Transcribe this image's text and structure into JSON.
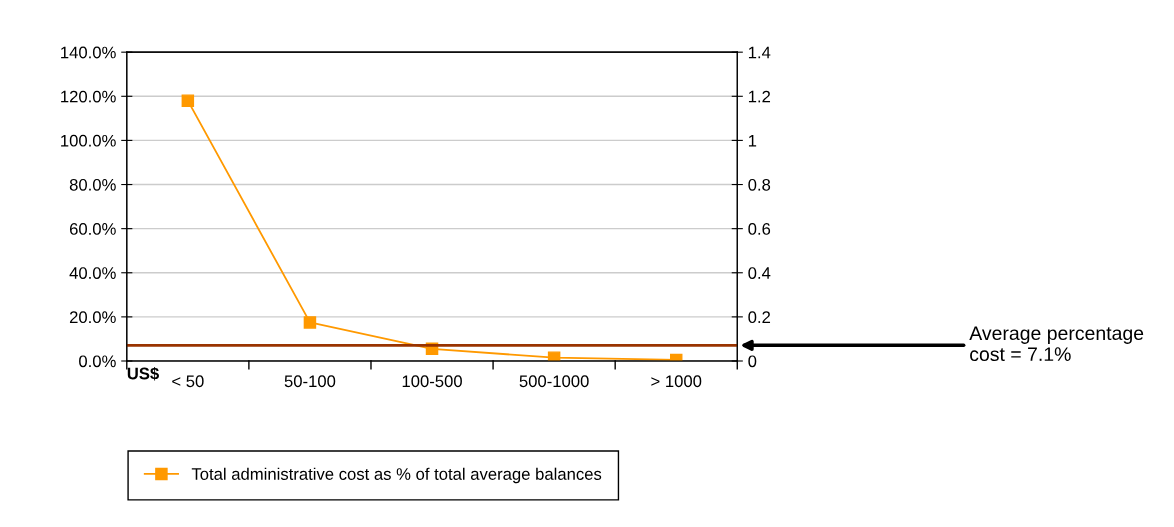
{
  "chart_data": {
    "type": "line",
    "xlabel": "US$",
    "categories": [
      "< 50",
      "50-100",
      "100-500",
      "500-1000",
      "> 1000"
    ],
    "series": [
      {
        "name": "Total administrative cost as % of total average balances",
        "color": "#ff9900",
        "values": [
          118,
          17.5,
          5.5,
          1.5,
          0.5
        ]
      }
    ],
    "ylim": [
      0,
      140
    ],
    "yticks": [
      {
        "value": 0,
        "label": "0.0%"
      },
      {
        "value": 20,
        "label": "20.0%"
      },
      {
        "value": 40,
        "label": "40.0%"
      },
      {
        "value": 60,
        "label": "60.0%"
      },
      {
        "value": 80,
        "label": "80.0%"
      },
      {
        "value": 100,
        "label": "100.0%"
      },
      {
        "value": 120,
        "label": "120.0%"
      },
      {
        "value": 140,
        "label": "140.0%"
      }
    ],
    "y2lim": [
      0,
      1.4
    ],
    "y2ticks": [
      0,
      0.2,
      0.4,
      0.6,
      0.8,
      1,
      1.2,
      1.4
    ],
    "ref_lines": [
      {
        "axis": "y",
        "value": 7.1,
        "label": "Average percentage\ncost = 7.1%",
        "color": "#993300"
      }
    ],
    "grid": "y",
    "legend": "bottom left",
    "marker": "square",
    "line_style": "solid"
  }
}
